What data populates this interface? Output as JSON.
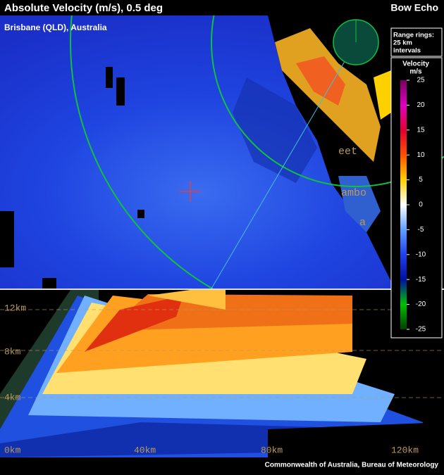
{
  "header": {
    "title": "Absolute Velocity (m/s), 0.5 deg",
    "event": "Bow Echo"
  },
  "map": {
    "location": "Brisbane (QLD), Australia",
    "place_labels": [
      "eet",
      "ambo",
      "a"
    ]
  },
  "range_rings": [
    "Range rings:",
    "25 km",
    "intervals"
  ],
  "colorbar": {
    "title": "Velocity",
    "unit": "m/s",
    "range": [
      -25,
      25
    ],
    "ticks": [
      25,
      20,
      15,
      10,
      5,
      0,
      -5,
      -10,
      -15,
      -20,
      -25
    ]
  },
  "cross_section": {
    "height_labels": [
      "12km",
      "8km",
      "4km",
      "0km"
    ],
    "distance_labels": [
      "40km",
      "80km",
      "120km"
    ]
  },
  "footer": {
    "credit": "Commonwealth of Australia, Bureau of Meteorology"
  }
}
